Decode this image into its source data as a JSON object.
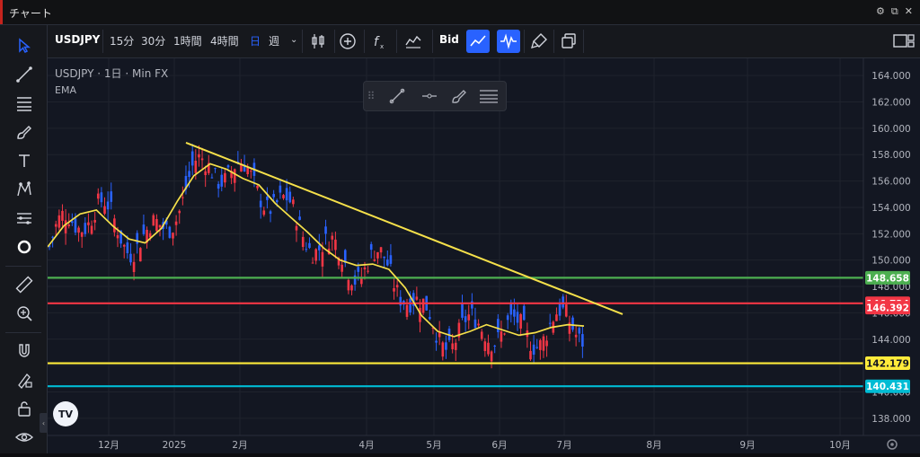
{
  "window": {
    "title": "チャート"
  },
  "toolbar": {
    "symbol": "USDJPY",
    "intervals": [
      "15分",
      "30分",
      "1時間",
      "4時間",
      "日",
      "週"
    ],
    "active_interval": "日",
    "price_type": "Bid"
  },
  "legend": {
    "title": "USDJPY · 1日 · Min FX",
    "indicator": "EMA"
  },
  "watermark": "TV",
  "chart_data": {
    "type": "candlestick",
    "title": "USDJPY · 1日 · Min FX",
    "x_labels": [
      "12月",
      "2025",
      "2月",
      "4月",
      "5月",
      "6月",
      "7月",
      "8月",
      "9月",
      "10月"
    ],
    "y_ticks": [
      "164.000",
      "162.000",
      "160.000",
      "158.000",
      "156.000",
      "154.000",
      "152.000",
      "150.000",
      "148.000",
      "146.000",
      "144.000",
      "142.000",
      "140.000",
      "138.000"
    ],
    "ylim": [
      136.7,
      165.3
    ],
    "series": [
      {
        "name": "EMA",
        "color": "#f5e04a",
        "values": [
          151.0,
          152.6,
          153.5,
          153.8,
          152.6,
          151.6,
          151.3,
          152.4,
          154.5,
          156.4,
          157.3,
          156.9,
          156.2,
          155.7,
          154.3,
          153.2,
          152.1,
          150.9,
          150.0,
          149.6,
          149.7,
          149.3,
          147.9,
          145.8,
          144.6,
          144.2,
          144.6,
          145.1,
          144.7,
          144.3,
          144.5,
          144.9,
          145.1,
          145.0
        ]
      }
    ],
    "horizontal_lines": [
      {
        "label": "148.658",
        "value": 148.658,
        "color": "#4caf50"
      },
      {
        "label": "146.724",
        "value": 146.724,
        "color": "#f23645"
      },
      {
        "label": "146.392",
        "value": 146.392,
        "color": "#f23645"
      },
      {
        "label": "142.179",
        "value": 142.179,
        "color": "#ffeb3b"
      },
      {
        "label": "140.431",
        "value": 140.431,
        "color": "#00bcd4"
      }
    ],
    "trendline": {
      "color": "#f5e04a",
      "from": [
        158.9
      ],
      "to": [
        145.9
      ]
    },
    "candle_colors": {
      "up": "#2962ff",
      "down": "#f23645"
    }
  }
}
